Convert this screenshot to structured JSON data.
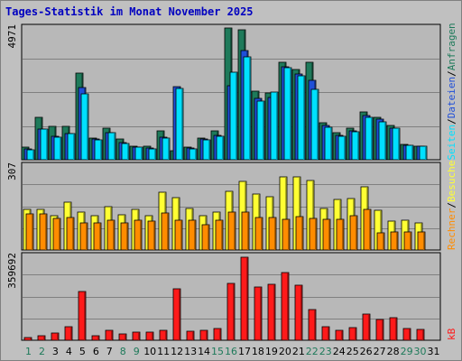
{
  "title": "Tages-Statistik im Monat November 2025",
  "colors": {
    "background": "#c0c0c0",
    "panel": "#b8b8b8",
    "title": "#0000c0",
    "hits": "#1e7a5a",
    "files": "#1f4fd8",
    "pages": "#00e0ff",
    "visits": "#ffff33",
    "sites": "#ff8c00",
    "kbytes": "#ff1a1a",
    "weekend_label": "#1e7a5a",
    "weekday_label": "#000000"
  },
  "right_labels": {
    "hits": "Anfragen",
    "files": "Dateien",
    "pages": "Seiten",
    "visits": "Besuche",
    "sites": "Rechner",
    "kbytes": "kB",
    "separator": "/"
  },
  "chart_data": {
    "type": "bar",
    "days": [
      "1",
      "2",
      "3",
      "4",
      "5",
      "6",
      "7",
      "8",
      "9",
      "10",
      "11",
      "12",
      "13",
      "14",
      "15",
      "16",
      "17",
      "18",
      "19",
      "20",
      "21",
      "22",
      "23",
      "24",
      "25",
      "26",
      "27",
      "28",
      "29",
      "30",
      "31"
    ],
    "weekend_days": [
      "1",
      "2",
      "8",
      "9",
      "15",
      "16",
      "22",
      "23",
      "29",
      "30"
    ],
    "panels": [
      {
        "id": "top",
        "max_label": "4971",
        "ymax": 4971,
        "series": [
          {
            "name": "Anfragen",
            "key": "hits",
            "values": [
              470,
              1580,
              1240,
              1230,
              3210,
              790,
              1160,
              780,
              520,
              510,
              1080,
              320,
              460,
              800,
              1080,
              4920,
              4820,
              2550,
              2480,
              3620,
              3350,
              3620,
              1380,
              1000,
              1190,
              1780,
              1590,
              1280,
              570,
              520,
              0
            ]
          },
          {
            "name": "Dateien",
            "key": "files",
            "values": [
              390,
              1150,
              860,
              980,
              2680,
              760,
              1010,
              650,
              480,
              430,
              830,
              2730,
              420,
              760,
              900,
              2750,
              4060,
              2300,
              2310,
              3470,
              3200,
              2970,
              1260,
              910,
              1070,
              1640,
              1500,
              1190,
              550,
              500,
              0
            ]
          },
          {
            "name": "Seiten",
            "key": "pages",
            "values": [
              380,
              1130,
              840,
              970,
              2450,
              740,
              1000,
              620,
              460,
              400,
              820,
              2640,
              410,
              740,
              880,
              3270,
              3820,
              2200,
              2530,
              3430,
              3130,
              2620,
              1210,
              880,
              1030,
              1590,
              1400,
              1170,
              540,
              490,
              0
            ]
          }
        ]
      },
      {
        "id": "middle",
        "max_label": "307",
        "ymax": 307,
        "series": [
          {
            "name": "Besuche",
            "key": "visits",
            "values": [
              144,
              146,
              123,
              172,
              136,
              123,
              155,
              126,
              145,
              122,
              208,
              186,
              148,
              122,
              136,
              209,
              244,
              200,
              190,
              261,
              263,
              249,
              148,
              181,
              184,
              227,
              143,
              105,
              108,
              96,
              0
            ]
          },
          {
            "name": "Rechner",
            "key": "sites",
            "values": [
              129,
              130,
              112,
              115,
              97,
              97,
              106,
              98,
              108,
              102,
              132,
              106,
              108,
              92,
              107,
              137,
              135,
              116,
              117,
              111,
              121,
              112,
              111,
              111,
              122,
              144,
              62,
              64,
              64,
              64,
              0
            ]
          }
        ]
      },
      {
        "id": "bottom",
        "max_label": "359692",
        "ymax": 359692,
        "series": [
          {
            "name": "kB",
            "key": "kbytes",
            "values": [
              12000,
              18000,
              30000,
              56000,
              206000,
              18000,
              42000,
              26000,
              35000,
              35000,
              40000,
              216000,
              36000,
              40000,
              48000,
              238000,
              350000,
              224000,
              235000,
              284000,
              231000,
              128000,
              57000,
              43000,
              52000,
              109000,
              86000,
              96000,
              49000,
              46000,
              0
            ]
          }
        ]
      }
    ]
  }
}
